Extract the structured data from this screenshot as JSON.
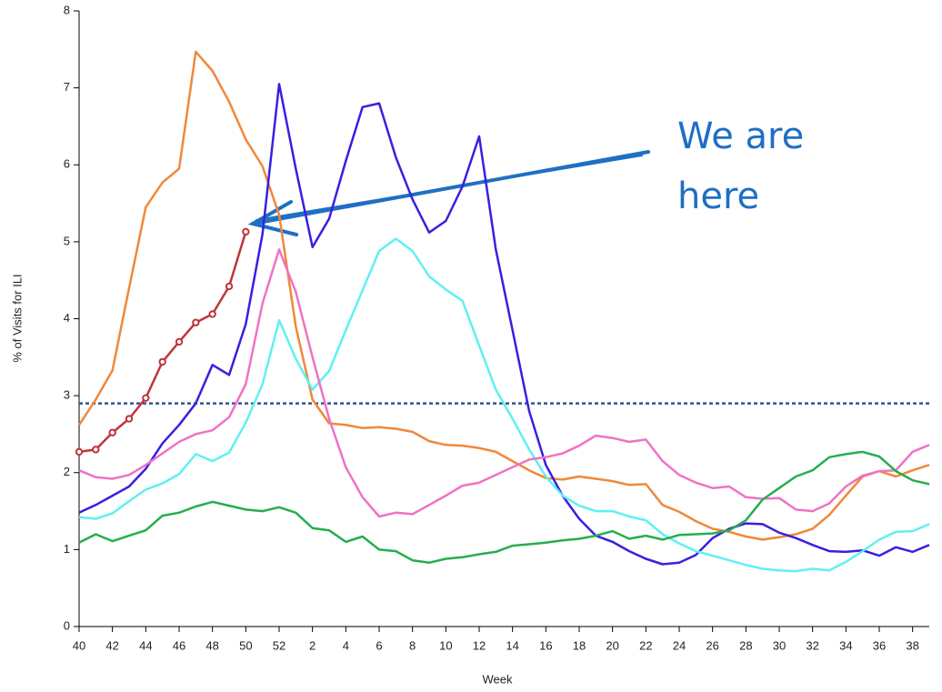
{
  "chart_data": {
    "type": "line",
    "x_label": "Week",
    "y_label": "% of Visits for ILI",
    "annotation": [
      "We are",
      "here"
    ],
    "categories": [
      40,
      null,
      42,
      null,
      44,
      null,
      46,
      null,
      48,
      null,
      50,
      null,
      52,
      null,
      2,
      null,
      4,
      null,
      6,
      null,
      8,
      null,
      10,
      null,
      12,
      null,
      14,
      null,
      16,
      null,
      18,
      null,
      20,
      null,
      22,
      null,
      24,
      null,
      26,
      null,
      28,
      null,
      30,
      null,
      32,
      null,
      34,
      null,
      36,
      null,
      38,
      null
    ],
    "ylim": [
      0,
      8
    ],
    "yticks": [
      0,
      1,
      2,
      3,
      4,
      5,
      6,
      7,
      8
    ],
    "baseline": {
      "value": 2.9,
      "color": "#2f5597"
    },
    "series": [
      {
        "color": "#f0883a",
        "values": [
          2.62,
          2.95,
          3.33,
          4.4,
          5.45,
          5.77,
          5.95,
          7.47,
          7.22,
          6.82,
          6.33,
          5.98,
          5.35,
          3.9,
          2.95,
          2.64,
          2.62,
          2.58,
          2.59,
          2.57,
          2.53,
          2.41,
          2.36,
          2.35,
          2.32,
          2.27,
          2.15,
          2.03,
          1.93,
          1.91,
          1.95,
          1.92,
          1.89,
          1.84,
          1.85,
          1.58,
          1.49,
          1.37,
          1.27,
          1.23,
          1.17,
          1.13,
          1.16,
          1.2,
          1.27,
          1.45,
          1.7,
          1.95,
          2.02,
          1.95,
          2.03,
          2.1
        ]
      },
      {
        "color": "#3a1fe0",
        "values": [
          1.48,
          1.58,
          1.7,
          1.82,
          2.05,
          2.38,
          2.62,
          2.9,
          3.4,
          3.27,
          3.93,
          5.1,
          7.05,
          5.95,
          4.93,
          5.3,
          6.05,
          6.75,
          6.8,
          6.1,
          5.55,
          5.12,
          5.27,
          5.72,
          6.37,
          4.9,
          3.85,
          2.8,
          2.1,
          1.7,
          1.4,
          1.18,
          1.1,
          0.98,
          0.88,
          0.81,
          0.83,
          0.93,
          1.15,
          1.27,
          1.34,
          1.33,
          1.22,
          1.15,
          1.06,
          0.98,
          0.97,
          0.99,
          0.92,
          1.03,
          0.97,
          1.06
        ]
      },
      {
        "color": "#5ff0f2",
        "values": [
          1.42,
          1.4,
          1.47,
          1.63,
          1.78,
          1.86,
          1.98,
          2.24,
          2.15,
          2.26,
          2.65,
          3.15,
          3.98,
          3.48,
          3.08,
          3.32,
          3.85,
          4.37,
          4.88,
          5.04,
          4.88,
          4.55,
          4.38,
          4.23,
          3.65,
          3.08,
          2.7,
          2.3,
          1.95,
          1.7,
          1.57,
          1.5,
          1.5,
          1.43,
          1.38,
          1.2,
          1.08,
          0.98,
          0.92,
          0.86,
          0.8,
          0.75,
          0.73,
          0.72,
          0.75,
          0.73,
          0.84,
          0.98,
          1.13,
          1.23,
          1.24,
          1.33
        ]
      },
      {
        "color": "#ef72c4",
        "values": [
          2.03,
          1.94,
          1.92,
          1.97,
          2.1,
          2.25,
          2.4,
          2.5,
          2.55,
          2.72,
          3.15,
          4.2,
          4.9,
          4.35,
          3.5,
          2.7,
          2.07,
          1.68,
          1.43,
          1.48,
          1.46,
          1.58,
          1.7,
          1.83,
          1.87,
          1.97,
          2.07,
          2.17,
          2.2,
          2.25,
          2.35,
          2.48,
          2.45,
          2.4,
          2.43,
          2.15,
          1.97,
          1.87,
          1.8,
          1.82,
          1.68,
          1.66,
          1.67,
          1.52,
          1.5,
          1.6,
          1.82,
          1.96,
          2.02,
          2.03,
          2.27,
          2.36
        ]
      },
      {
        "color": "#27ad4f",
        "values": [
          1.09,
          1.2,
          1.11,
          1.18,
          1.25,
          1.44,
          1.48,
          1.56,
          1.62,
          1.57,
          1.52,
          1.5,
          1.55,
          1.48,
          1.28,
          1.25,
          1.1,
          1.17,
          1.0,
          0.98,
          0.86,
          0.83,
          0.88,
          0.9,
          0.94,
          0.97,
          1.05,
          1.07,
          1.09,
          1.12,
          1.14,
          1.18,
          1.24,
          1.14,
          1.18,
          1.13,
          1.19,
          1.2,
          1.21,
          1.25,
          1.38,
          1.65,
          1.8,
          1.95,
          2.03,
          2.2,
          2.24,
          2.27,
          2.21,
          2.02,
          1.9,
          1.85
        ]
      },
      {
        "color": "#c0343a",
        "markers": true,
        "values": [
          2.27,
          2.3,
          2.52,
          2.7,
          2.97,
          3.44,
          3.7,
          3.95,
          4.06,
          4.42,
          5.13,
          null,
          null,
          null,
          null,
          null,
          null,
          null,
          null,
          null,
          null,
          null,
          null,
          null,
          null,
          null,
          null,
          null,
          null,
          null,
          null,
          null,
          null,
          null,
          null,
          null,
          null,
          null,
          null,
          null,
          null,
          null,
          null,
          null,
          null,
          null,
          null,
          null,
          null,
          null,
          null,
          null
        ]
      }
    ]
  }
}
